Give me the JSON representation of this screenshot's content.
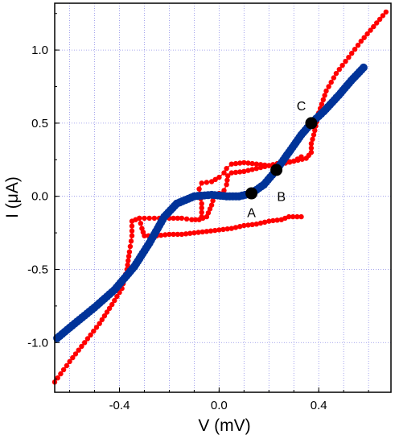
{
  "chart_data": {
    "type": "scatter",
    "title": "",
    "xlabel": "V (mV)",
    "ylabel": "I (μA)",
    "xlim": [
      -0.66,
      0.69
    ],
    "ylim": [
      -1.34,
      1.32
    ],
    "grid": true,
    "x_ticks": [
      {
        "value": -0.4,
        "label": "-0.4"
      },
      {
        "value": 0.0,
        "label": "0.0"
      },
      {
        "value": 0.4,
        "label": "0.4"
      }
    ],
    "y_ticks": [
      {
        "value": -1.0,
        "label": "-1.0"
      },
      {
        "value": -0.5,
        "label": "-0.5"
      },
      {
        "value": 0.0,
        "label": "0.0"
      },
      {
        "value": 0.5,
        "label": "0.5"
      },
      {
        "value": 1.0,
        "label": "1.0"
      }
    ],
    "x_minor_step": 0.1,
    "series": [
      {
        "color": "#ff0000",
        "style": "line+markers",
        "segments": [
          [
            [
              -0.66,
              -1.27
            ],
            [
              -0.6,
              -1.13
            ],
            [
              -0.54,
              -1.0
            ],
            [
              -0.48,
              -0.87
            ],
            [
              -0.43,
              -0.74
            ],
            [
              -0.39,
              -0.63
            ],
            [
              -0.37,
              -0.5
            ],
            [
              -0.36,
              -0.38
            ],
            [
              -0.35,
              -0.27
            ],
            [
              -0.35,
              -0.17
            ],
            [
              -0.32,
              -0.15
            ],
            [
              -0.28,
              -0.15
            ],
            [
              -0.24,
              -0.15
            ],
            [
              -0.2,
              -0.15
            ],
            [
              -0.15,
              -0.15
            ],
            [
              -0.11,
              -0.16
            ],
            [
              -0.08,
              -0.16
            ],
            [
              -0.05,
              -0.14
            ],
            [
              -0.03,
              -0.06
            ],
            [
              -0.02,
              0.0
            ],
            [
              0.0,
              0.02
            ],
            [
              0.02,
              0.04
            ],
            [
              0.03,
              0.08
            ],
            [
              0.035,
              0.14
            ],
            [
              0.05,
              0.16
            ],
            [
              0.1,
              0.17
            ],
            [
              0.15,
              0.19
            ],
            [
              0.2,
              0.21
            ],
            [
              0.25,
              0.23
            ],
            [
              0.3,
              0.24
            ],
            [
              0.35,
              0.26
            ],
            [
              0.37,
              0.3
            ],
            [
              0.37,
              0.36
            ],
            [
              0.38,
              0.42
            ],
            [
              0.4,
              0.57
            ],
            [
              0.43,
              0.72
            ],
            [
              0.47,
              0.84
            ],
            [
              0.52,
              0.95
            ],
            [
              0.57,
              1.06
            ],
            [
              0.62,
              1.16
            ],
            [
              0.67,
              1.26
            ]
          ],
          [
            [
              -0.32,
              -0.15
            ],
            [
              -0.31,
              -0.22
            ],
            [
              -0.3,
              -0.27
            ],
            [
              -0.25,
              -0.27
            ],
            [
              -0.2,
              -0.26
            ],
            [
              -0.15,
              -0.26
            ],
            [
              -0.1,
              -0.25
            ],
            [
              -0.05,
              -0.24
            ],
            [
              0.0,
              -0.23
            ],
            [
              0.05,
              -0.22
            ],
            [
              0.1,
              -0.2
            ],
            [
              0.15,
              -0.19
            ],
            [
              0.2,
              -0.17
            ],
            [
              0.25,
              -0.16
            ],
            [
              0.28,
              -0.14
            ],
            [
              0.33,
              -0.14
            ]
          ],
          [
            [
              -0.07,
              -0.14
            ],
            [
              -0.07,
              -0.05
            ],
            [
              -0.08,
              0.05
            ],
            [
              -0.07,
              0.09
            ],
            [
              -0.03,
              0.1
            ],
            [
              0.0,
              0.13
            ],
            [
              0.02,
              0.16
            ],
            [
              0.03,
              0.19
            ],
            [
              0.05,
              0.22
            ],
            [
              0.1,
              0.23
            ],
            [
              0.15,
              0.22
            ],
            [
              0.2,
              0.21
            ],
            [
              0.25,
              0.22
            ],
            [
              0.3,
              0.24
            ],
            [
              0.33,
              0.27
            ]
          ]
        ]
      },
      {
        "color": "#003399",
        "style": "thick-markers",
        "segments": [
          [
            [
              -0.65,
              -0.97
            ],
            [
              -0.58,
              -0.87
            ],
            [
              -0.5,
              -0.76
            ],
            [
              -0.42,
              -0.64
            ],
            [
              -0.34,
              -0.48
            ],
            [
              -0.28,
              -0.32
            ],
            [
              -0.22,
              -0.14
            ],
            [
              -0.17,
              -0.05
            ],
            [
              -0.1,
              0.0
            ],
            [
              -0.03,
              0.01
            ],
            [
              0.03,
              0.0
            ],
            [
              0.08,
              0.0
            ],
            [
              0.13,
              0.02
            ],
            [
              0.18,
              0.08
            ],
            [
              0.23,
              0.18
            ],
            [
              0.28,
              0.3
            ],
            [
              0.33,
              0.42
            ],
            [
              0.37,
              0.5
            ],
            [
              0.42,
              0.58
            ],
            [
              0.48,
              0.69
            ],
            [
              0.53,
              0.79
            ],
            [
              0.58,
              0.88
            ]
          ]
        ]
      }
    ],
    "annotations": [
      {
        "label": "A",
        "x": 0.13,
        "y": 0.02,
        "label_dx": 0.0,
        "label_dy": -0.13
      },
      {
        "label": "B",
        "x": 0.23,
        "y": 0.18,
        "label_dx": 0.02,
        "label_dy": -0.18
      },
      {
        "label": "C",
        "x": 0.37,
        "y": 0.5,
        "label_dx": -0.04,
        "label_dy": 0.12
      }
    ]
  }
}
